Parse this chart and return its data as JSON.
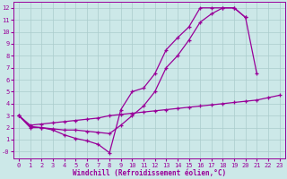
{
  "xlabel": "Windchill (Refroidissement éolien,°C)",
  "bg_color": "#cce8e8",
  "grid_color": "#aacccc",
  "line_color": "#990099",
  "curve1_x": [
    0,
    1,
    2,
    3,
    4,
    5,
    6,
    7,
    8,
    9,
    10,
    11,
    12,
    13,
    14,
    15,
    16,
    17,
    18,
    19,
    20,
    21
  ],
  "curve1_y": [
    3,
    2,
    2.0,
    1.8,
    1.4,
    1.1,
    0.9,
    0.6,
    -0.1,
    3.5,
    5.0,
    5.3,
    6.5,
    8.5,
    9.5,
    10.4,
    12.0,
    12.0,
    12.0,
    12.0,
    11.2,
    6.5
  ],
  "curve2_x": [
    0,
    1,
    2,
    3,
    4,
    5,
    6,
    7,
    8,
    9,
    10,
    11,
    12,
    13,
    14,
    15,
    16,
    17,
    18,
    19,
    20
  ],
  "curve2_y": [
    3,
    2.1,
    2.0,
    1.9,
    1.8,
    1.8,
    1.7,
    1.6,
    1.5,
    2.2,
    3.0,
    3.8,
    5.0,
    7.0,
    8.0,
    9.3,
    10.8,
    11.5,
    12.0,
    12.0,
    11.2
  ],
  "curve3_x": [
    0,
    1,
    2,
    3,
    4,
    5,
    6,
    7,
    8,
    9,
    10,
    11,
    12,
    13,
    14,
    15,
    16,
    17,
    18,
    19,
    20,
    21,
    22,
    23
  ],
  "curve3_y": [
    3,
    2.2,
    2.3,
    2.4,
    2.5,
    2.6,
    2.7,
    2.8,
    3.0,
    3.1,
    3.2,
    3.3,
    3.4,
    3.5,
    3.6,
    3.7,
    3.8,
    3.9,
    4.0,
    4.1,
    4.2,
    4.3,
    4.5,
    4.7
  ],
  "xlim": [
    -0.5,
    23.5
  ],
  "ylim": [
    -0.6,
    12.5
  ],
  "xticks": [
    0,
    1,
    2,
    3,
    4,
    5,
    6,
    7,
    8,
    9,
    10,
    11,
    12,
    13,
    14,
    15,
    16,
    17,
    18,
    19,
    20,
    21,
    22,
    23
  ],
  "yticks": [
    0,
    1,
    2,
    3,
    4,
    5,
    6,
    7,
    8,
    9,
    10,
    11,
    12
  ],
  "ytick_labels": [
    "-0",
    "1",
    "2",
    "3",
    "4",
    "5",
    "6",
    "7",
    "8",
    "9",
    "10",
    "11",
    "12"
  ],
  "tick_fontsize": 5.0,
  "xlabel_fontsize": 5.5,
  "marker": "+",
  "markersize": 3.5,
  "linewidth": 0.9
}
